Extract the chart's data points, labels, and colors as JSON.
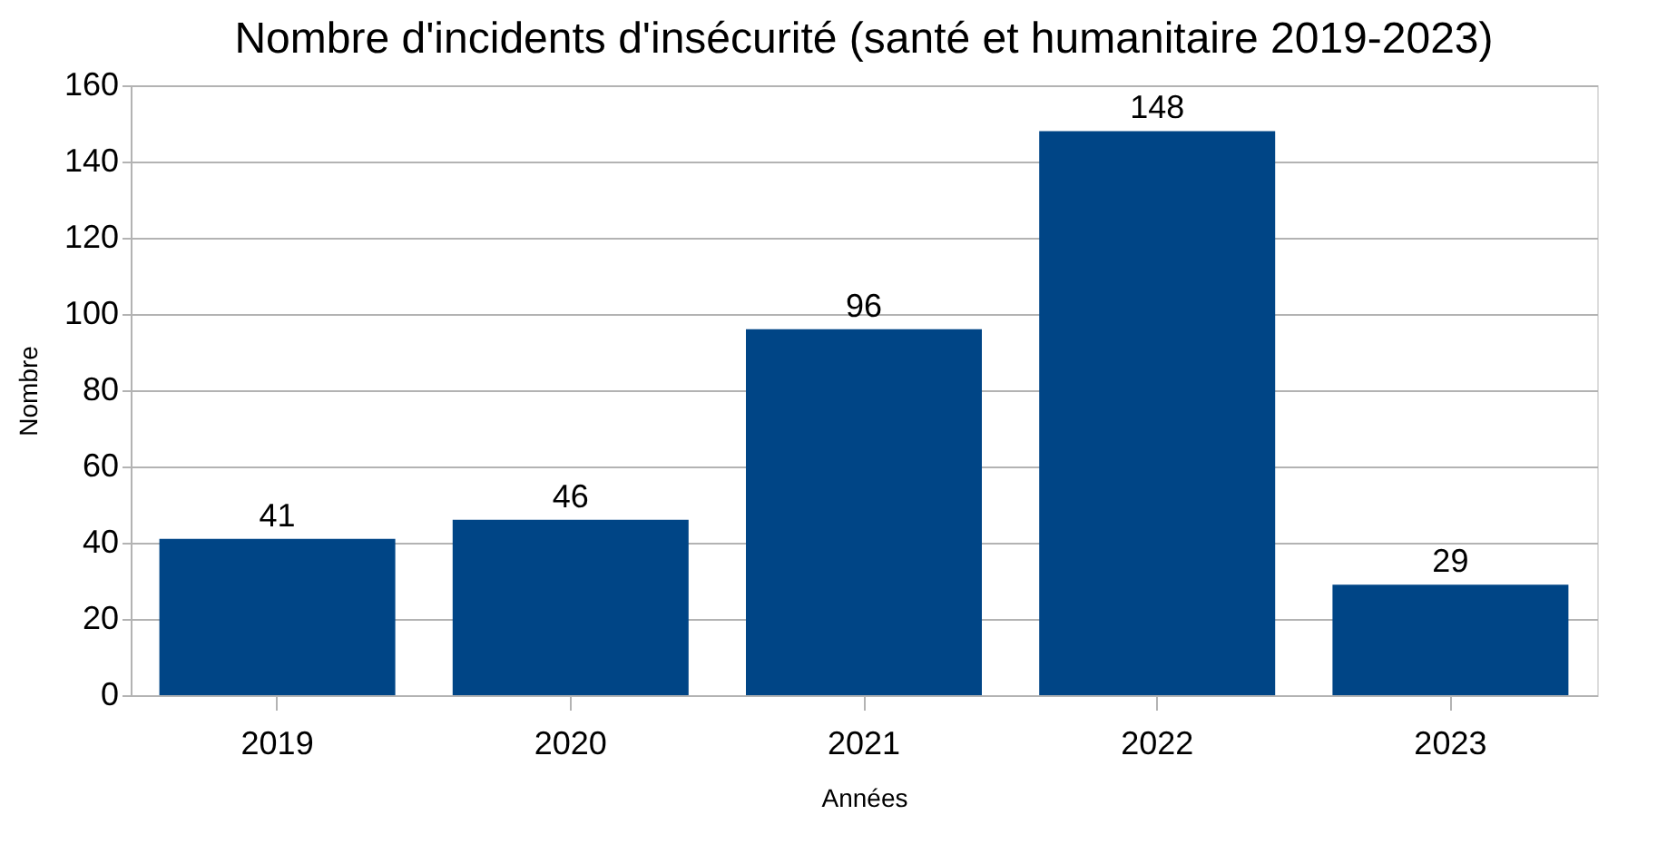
{
  "chart_data": {
    "type": "bar",
    "title": "Nombre d'incidents d'insécurité (santé et humanitaire 2019-2023)",
    "xlabel": "Années",
    "ylabel": "Nombre",
    "categories": [
      "2019",
      "2020",
      "2021",
      "2022",
      "2023"
    ],
    "values": [
      41,
      46,
      96,
      148,
      29
    ],
    "color": "#004586",
    "ylim": [
      0,
      160
    ],
    "yticks": [
      0,
      20,
      40,
      60,
      80,
      100,
      120,
      140,
      160
    ],
    "grid": "y",
    "data_labels": true
  }
}
